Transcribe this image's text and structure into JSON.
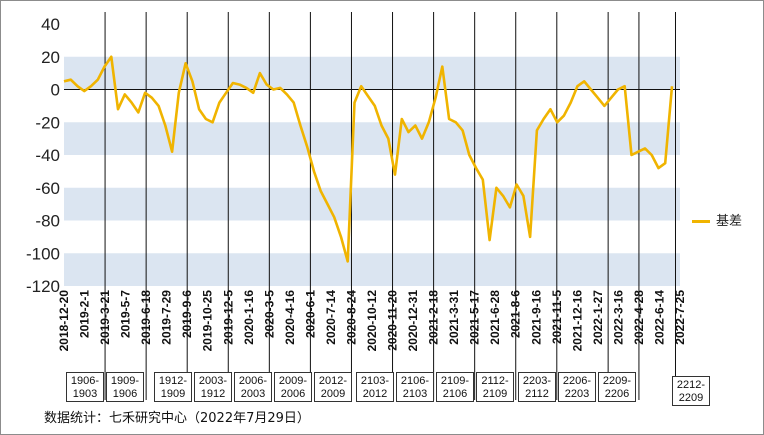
{
  "chart_data": {
    "type": "line",
    "title": "",
    "xlabel": "",
    "ylabel": "",
    "ylim": [
      -120,
      40
    ],
    "yticks": [
      40,
      20,
      0,
      -20,
      -40,
      -60,
      -80,
      -100,
      -120
    ],
    "band_color": "#dbe5f1",
    "line_color": "#f0b400",
    "x_tick_labels": [
      "2018-12-20",
      "2019-2-1",
      "2019-3-21",
      "2019-5-7",
      "2019-6-18",
      "2019-7-29",
      "2019-9-6",
      "2019-10-25",
      "2019-12-5",
      "2020-1-16",
      "2020-3-5",
      "2020-4-16",
      "2020-6-1",
      "2020-7-14",
      "2020-8-24",
      "2020-10-12",
      "2020-11-20",
      "2020-12-31",
      "2021-2-18",
      "2021-3-31",
      "2021-5-17",
      "2021-6-28",
      "2021-8-6",
      "2021-9-16",
      "2021-11-5",
      "2021-12-16",
      "2022-1-27",
      "2022-3-16",
      "2022-4-28",
      "2022-6-14",
      "2022-7-25"
    ],
    "roll_dates": [
      "2019-3-21",
      "2019-6-18",
      "2019-9-6",
      "2019-12-5",
      "2020-3-5",
      "2020-6-1",
      "2020-8-24",
      "2020-11-20",
      "2021-2-18",
      "2021-5-17",
      "2021-8-6",
      "2021-11-5",
      "2022-2-20",
      "2022-4-28",
      "2022-7-16"
    ],
    "contracts": [
      "1906-1903",
      "1909-1906",
      "1912-1909",
      "2003-1912",
      "2006-2003",
      "2009-2006",
      "2012-2009",
      "2103-2012",
      "2106-2103",
      "2109-2106",
      "2112-2109",
      "2203-2112",
      "2206-2203",
      "2209-2206",
      "2212-2209"
    ],
    "series": [
      {
        "name": "基差",
        "x": [
          0,
          1,
          2,
          3,
          4,
          5,
          6,
          7,
          8,
          9,
          10,
          11,
          12,
          13,
          14,
          15,
          16,
          17,
          18,
          19,
          20,
          21,
          22,
          23,
          24,
          25,
          26,
          27,
          28,
          29,
          30,
          31,
          32,
          33,
          34,
          35,
          36,
          37,
          38,
          39,
          40,
          41,
          42,
          43,
          44,
          45,
          46,
          47,
          48,
          49,
          50,
          51,
          52,
          53,
          54,
          55,
          56,
          57,
          58,
          59,
          60,
          61,
          62,
          63,
          64,
          65,
          66,
          67,
          68,
          69,
          70,
          71,
          72,
          73,
          74,
          75,
          76,
          77,
          78,
          79,
          80,
          81,
          82,
          83,
          84,
          85,
          86,
          87,
          88,
          89,
          90
        ],
        "values": [
          5,
          6,
          2,
          -1,
          2,
          6,
          14,
          20,
          -12,
          -3,
          -8,
          -14,
          -2,
          -5,
          -10,
          -22,
          -38,
          -2,
          16,
          5,
          -12,
          -18,
          -20,
          -8,
          -2,
          4,
          3,
          1,
          -2,
          10,
          3,
          0,
          1,
          -3,
          -8,
          -22,
          -35,
          -50,
          -62,
          -70,
          -78,
          -90,
          -105,
          -8,
          2,
          -4,
          -10,
          -22,
          -30,
          -52,
          -18,
          -26,
          -22,
          -30,
          -20,
          -5,
          14,
          -18,
          -20,
          -25,
          -40,
          -48,
          -55,
          -92,
          -60,
          -65,
          -72,
          -58,
          -65,
          -90,
          -25,
          -18,
          -12,
          -20,
          -16,
          -8,
          2,
          5,
          0,
          -5,
          -10,
          -5,
          0,
          2,
          -40,
          -38,
          -36,
          -40,
          -48,
          -45,
          2
        ]
      }
    ]
  },
  "legend": {
    "label": "基差"
  },
  "source_note": "数据统计：七禾研究中心（2022年7月29日）"
}
